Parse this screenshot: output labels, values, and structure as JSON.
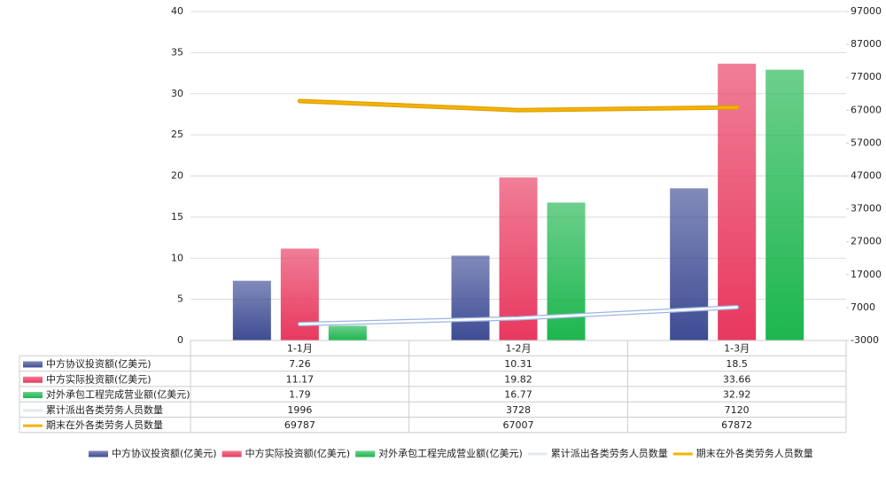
{
  "chart_data": {
    "type": "bar-line",
    "categories": [
      "1-1月",
      "1-2月",
      "1-3月"
    ],
    "series": [
      {
        "name": "中方协议投资额(亿美元)",
        "type": "bar",
        "color": "#3e4c94",
        "values": [
          7.26,
          10.31,
          18.5
        ]
      },
      {
        "name": "中方实际投资额(亿美元)",
        "type": "bar",
        "color": "#e8385e",
        "values": [
          11.17,
          19.82,
          33.66
        ]
      },
      {
        "name": "对外承包工程完成营业额(亿美元)",
        "type": "bar",
        "color": "#1db64e",
        "values": [
          1.79,
          16.77,
          32.92
        ]
      },
      {
        "name": "累计派出各类劳务人员数量",
        "type": "line",
        "axis": "y2",
        "color": "#ffffff",
        "values": [
          1996,
          3728,
          7120
        ]
      },
      {
        "name": "期末在外各类劳务人员数量",
        "type": "line",
        "axis": "y2",
        "color": "#f5b400",
        "values": [
          69787,
          67007,
          67872
        ]
      }
    ],
    "ylim": [
      0,
      40
    ],
    "yticks": [
      0,
      5,
      10,
      15,
      20,
      25,
      30,
      35,
      40
    ],
    "y2lim": [
      -3000,
      97000
    ],
    "y2ticks": [
      -3000,
      7000,
      17000,
      27000,
      37000,
      47000,
      57000,
      67000,
      77000,
      87000,
      97000
    ],
    "grid": true
  }
}
